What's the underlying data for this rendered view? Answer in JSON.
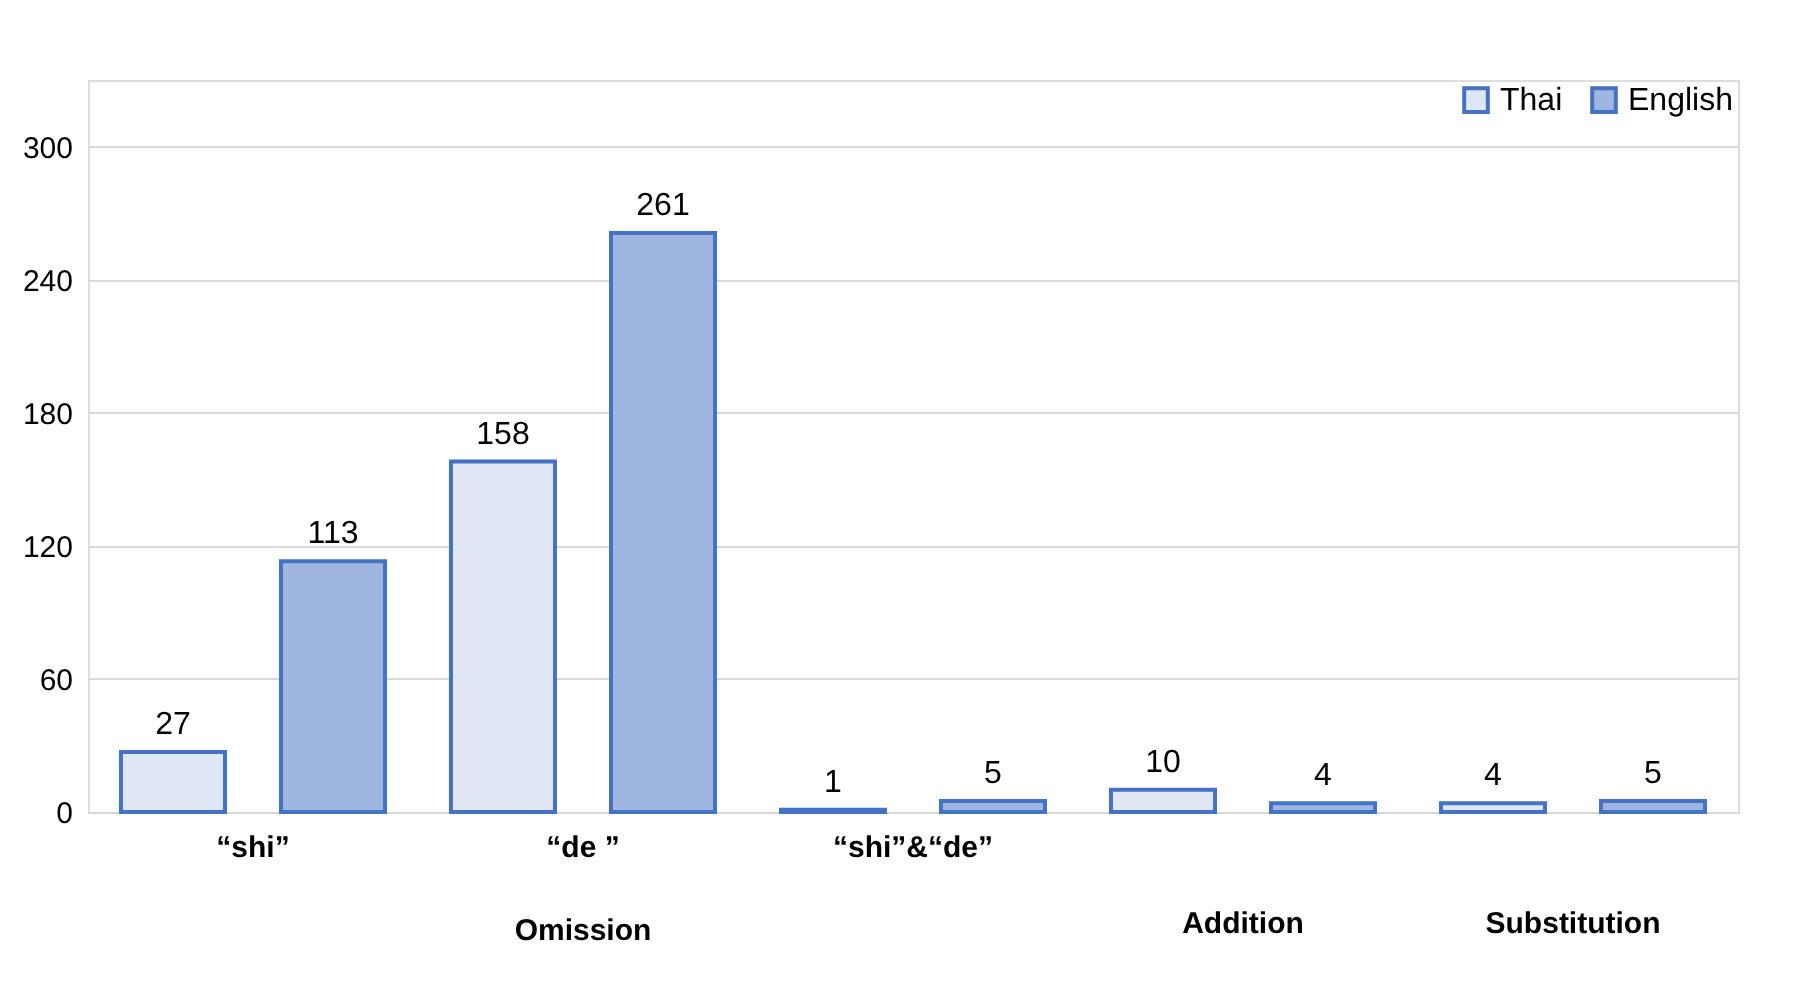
{
  "chart_data": {
    "type": "bar",
    "categories": [
      "“shi”",
      "“de ”",
      "“shi”&“de”",
      "Addition",
      "Substitution"
    ],
    "series": [
      {
        "name": "Thai",
        "color": "#dfe7f5",
        "values": [
          27,
          158,
          1,
          10,
          4
        ]
      },
      {
        "name": "English",
        "color": "#9fb6e0",
        "values": [
          113,
          261,
          5,
          4,
          5
        ]
      }
    ],
    "annotations": [
      "Omission"
    ],
    "ylim": [
      0,
      330
    ],
    "yticks": [
      0,
      60,
      120,
      180,
      240,
      300
    ],
    "grid": "y",
    "legend": "top right",
    "data_labels": true
  }
}
